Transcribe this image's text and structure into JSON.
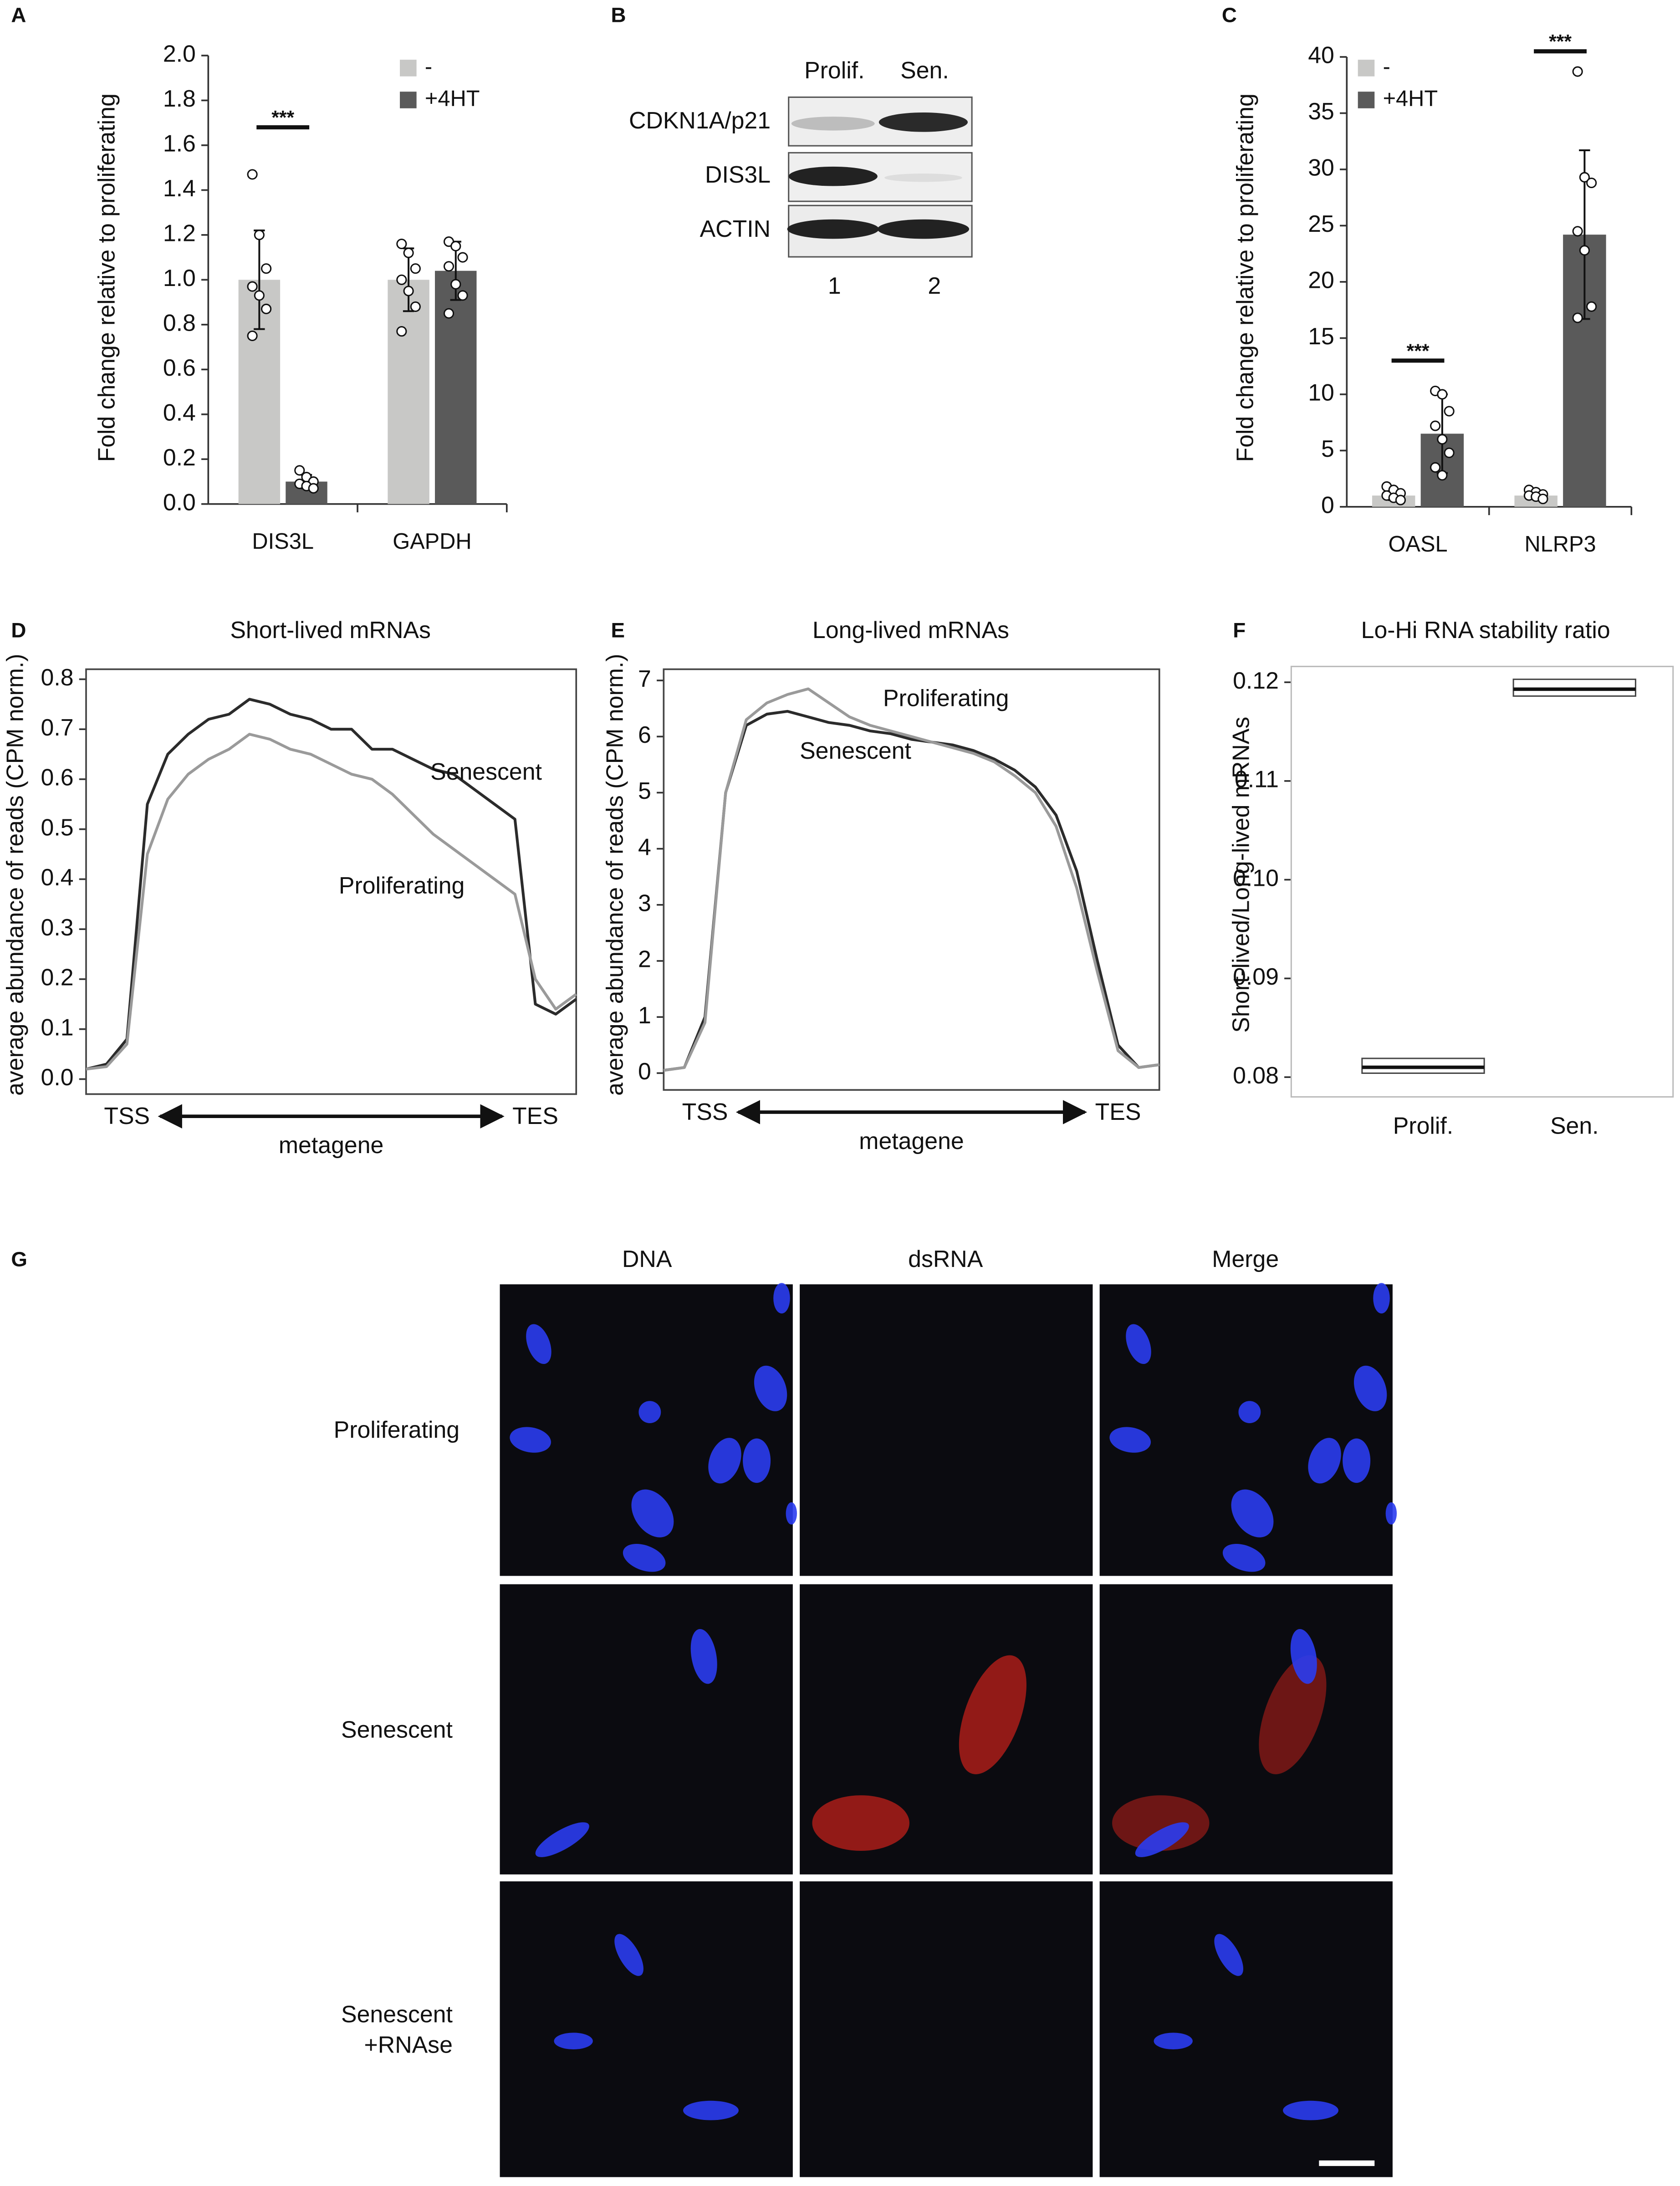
{
  "chart_data": [
    {
      "panel": "A",
      "type": "bar",
      "y_label": "Fold change relative to proliferating",
      "categories": [
        "DIS3L",
        "GAPDH"
      ],
      "series": [
        {
          "name": "-",
          "color": "#c8c8c6",
          "values": [
            1.0,
            1.0
          ],
          "errors": [
            0.22,
            0.14
          ],
          "points": [
            [
              1.47,
              1.2,
              1.05,
              0.97,
              0.93,
              0.87,
              0.75
            ],
            [
              1.16,
              1.12,
              1.05,
              1.0,
              0.95,
              0.88,
              0.77
            ]
          ]
        },
        {
          "name": "+4HT",
          "color": "#5a5a5a",
          "values": [
            0.1,
            1.04
          ],
          "errors": [
            0.03,
            0.13
          ],
          "points": [
            [
              0.15,
              0.12,
              0.1,
              0.09,
              0.08,
              0.07
            ],
            [
              1.17,
              1.15,
              1.1,
              1.06,
              0.98,
              0.93,
              0.85
            ]
          ]
        }
      ],
      "ylim": [
        0,
        2
      ],
      "yticks": [
        {
          "value": 0,
          "label": "0.0"
        },
        0.2,
        0.4,
        0.6,
        0.8,
        {
          "value": 1,
          "label": "1.0"
        },
        1.2,
        1.4,
        1.6,
        1.8,
        {
          "value": 2,
          "label": "2.0"
        }
      ],
      "significance": [
        {
          "label": "***",
          "category": "DIS3L",
          "y": 1.68
        }
      ]
    },
    {
      "panel": "C",
      "type": "bar",
      "y_label": "Fold change relative to proliferating",
      "categories": [
        "OASL",
        "NLRP3"
      ],
      "series": [
        {
          "name": "-",
          "color": "#c8c8c6",
          "values": [
            1.0,
            1.0
          ],
          "errors": [
            0.4,
            0.3
          ],
          "points": [
            [
              1.8,
              1.5,
              1.2,
              1.0,
              0.8,
              0.6
            ],
            [
              1.5,
              1.3,
              1.1,
              1.0,
              0.9,
              0.7
            ]
          ]
        },
        {
          "name": "+4HT",
          "color": "#5a5a5a",
          "values": [
            6.5,
            24.2
          ],
          "errors": [
            3.5,
            7.5
          ],
          "points": [
            [
              10.3,
              10.0,
              8.5,
              7.2,
              6.0,
              4.8,
              3.5,
              2.8
            ],
            [
              38.7,
              29.3,
              28.8,
              24.5,
              22.8,
              17.8,
              16.8
            ]
          ]
        }
      ],
      "ylim": [
        0,
        40
      ],
      "yticks": [
        0,
        5,
        10,
        15,
        20,
        25,
        30,
        35,
        40
      ],
      "significance": [
        {
          "label": "***",
          "category": "OASL",
          "y": 13
        },
        {
          "label": "***",
          "category": "NLRP3",
          "y": 40.5
        }
      ]
    },
    {
      "panel": "D",
      "type": "line",
      "title": "Short-lived mRNAs",
      "y_label": "average abundance of reads (CPM norm.)",
      "x_label": "metagene",
      "categories": [
        null,
        null,
        "TSS",
        null,
        null,
        null,
        null,
        null,
        null,
        null,
        null,
        null,
        null,
        null,
        null,
        null,
        null,
        null,
        null,
        null,
        null,
        null,
        "TES",
        null,
        null
      ],
      "series": [
        {
          "name": "Senescent",
          "color": "#2b2b2b",
          "values": [
            0.02,
            0.03,
            0.08,
            0.55,
            0.65,
            0.69,
            0.72,
            0.73,
            0.76,
            0.75,
            0.73,
            0.72,
            0.7,
            0.7,
            0.66,
            0.66,
            0.64,
            0.62,
            0.61,
            0.58,
            0.55,
            0.52,
            0.15,
            0.13,
            0.16
          ]
        },
        {
          "name": "Proliferating",
          "color": "#9a9a9a",
          "values": [
            0.02,
            0.025,
            0.07,
            0.45,
            0.56,
            0.61,
            0.64,
            0.66,
            0.69,
            0.68,
            0.66,
            0.65,
            0.63,
            0.61,
            0.6,
            0.57,
            0.53,
            0.49,
            0.46,
            0.43,
            0.4,
            0.37,
            0.2,
            0.14,
            0.17
          ]
        }
      ],
      "ylim": [
        -0.03,
        0.82
      ],
      "yticks": [
        {
          "value": 0,
          "label": "0.0"
        },
        0.1,
        0.2,
        0.3,
        0.4,
        0.5,
        0.6,
        0.7,
        0.8
      ]
    },
    {
      "panel": "E",
      "type": "line",
      "title": "Long-lived mRNAs",
      "y_label": "average abundance of reads (CPM norm.)",
      "x_label": "metagene",
      "categories": [
        null,
        null,
        "TSS",
        null,
        null,
        null,
        null,
        null,
        null,
        null,
        null,
        null,
        null,
        null,
        null,
        null,
        null,
        null,
        null,
        null,
        null,
        null,
        "TES",
        null,
        null
      ],
      "series": [
        {
          "name": "Senescent",
          "color": "#2b2b2b",
          "values": [
            0.05,
            0.1,
            1.0,
            5.0,
            6.2,
            6.4,
            6.45,
            6.35,
            6.25,
            6.2,
            6.1,
            6.05,
            5.95,
            5.9,
            5.85,
            5.75,
            5.6,
            5.4,
            5.1,
            4.6,
            3.6,
            2.0,
            0.5,
            0.1,
            0.15
          ]
        },
        {
          "name": "Proliferating",
          "color": "#9a9a9a",
          "values": [
            0.05,
            0.1,
            0.9,
            5.0,
            6.3,
            6.6,
            6.75,
            6.85,
            6.6,
            6.35,
            6.2,
            6.1,
            6.0,
            5.9,
            5.8,
            5.7,
            5.55,
            5.3,
            5.0,
            4.4,
            3.3,
            1.8,
            0.4,
            0.1,
            0.15
          ]
        }
      ],
      "ylim": [
        -0.3,
        7.2
      ],
      "yticks": [
        0,
        1,
        2,
        3,
        4,
        5,
        6,
        7
      ]
    },
    {
      "panel": "F",
      "type": "box",
      "title": "Lo-Hi RNA stability ratio",
      "y_label": "Short-lived/Long-lived mRNAs",
      "categories": [
        "Prolif.",
        "Sen."
      ],
      "median": [
        0.081,
        0.1193
      ],
      "q1": [
        0.0804,
        0.1186
      ],
      "q3": [
        0.0819,
        0.1203
      ],
      "ylim": [
        0.078,
        0.1216
      ],
      "yticks": [
        0.08,
        0.09,
        {
          "value": 0.1,
          "label": "0.10"
        },
        0.11,
        {
          "value": 0.12,
          "label": "0.12"
        }
      ]
    }
  ],
  "panel_b": {
    "panel": "B",
    "columns": [
      "Prolif.",
      "Sen."
    ],
    "rows": [
      "CDKN1A/p21",
      "DIS3L",
      "ACTIN"
    ],
    "lanes": [
      "1",
      "2"
    ]
  },
  "panel_g": {
    "panel": "G",
    "columns": [
      "DNA",
      "dsRNA",
      "Merge"
    ],
    "rows": [
      [
        "Proliferating"
      ],
      [
        "Senescent"
      ],
      [
        "Senescent",
        "+RNAse"
      ]
    ]
  }
}
